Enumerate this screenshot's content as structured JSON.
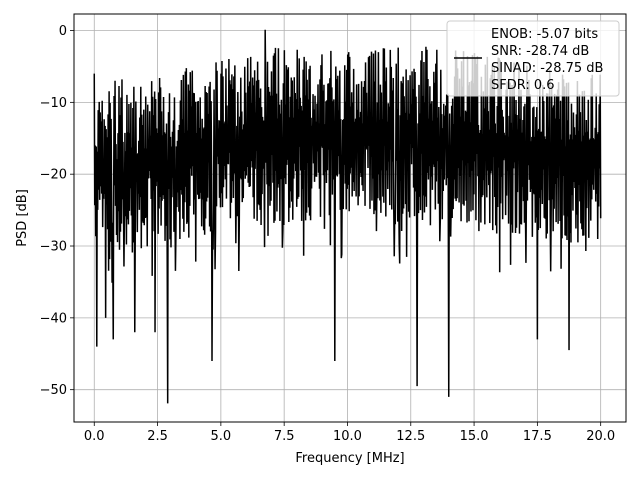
{
  "chart_data": {
    "type": "line",
    "xlabel": "Frequency [MHz]",
    "ylabel": "PSD [dB]",
    "xlim": [
      -0.8,
      21.0
    ],
    "ylim": [
      -54.5,
      2.3
    ],
    "xticks": [
      0.0,
      2.5,
      5.0,
      7.5,
      10.0,
      12.5,
      15.0,
      17.5,
      20.0
    ],
    "xtick_labels": [
      "0.0",
      "2.5",
      "5.0",
      "7.5",
      "10.0",
      "12.5",
      "15.0",
      "17.5",
      "20.0"
    ],
    "yticks": [
      0,
      -10,
      -20,
      -30,
      -40,
      -50
    ],
    "ytick_labels": [
      "0",
      "−10",
      "−20",
      "−30",
      "−40",
      "−50"
    ],
    "grid": true,
    "legend_position": "upper-right",
    "legend_lines": [
      "ENOB: -5.07 bits",
      "SNR: -28.74 dB",
      "SINAD: -28.75 dB",
      "SFDR: 0.6"
    ],
    "series": [
      {
        "color": "#000000",
        "x_start": 0.0,
        "x_end": 20.0,
        "num_points": 1024,
        "envelope": {
          "x": [
            0.0,
            0.5,
            2.5,
            5.0,
            7.5,
            10.0,
            12.5,
            15.0,
            17.5,
            20.0
          ],
          "upper": [
            -10,
            -7,
            -6,
            -4,
            -2,
            -3,
            -2,
            -3,
            -5,
            -6
          ],
          "lower": [
            -30,
            -32,
            -30,
            -28,
            -27,
            -26,
            -27,
            -28,
            -29,
            -30
          ]
        },
        "dips": [
          {
            "x": 0.1,
            "y": -44
          },
          {
            "x": 0.45,
            "y": -40
          },
          {
            "x": 0.75,
            "y": -43
          },
          {
            "x": 1.6,
            "y": -42
          },
          {
            "x": 2.4,
            "y": -42
          },
          {
            "x": 2.9,
            "y": -51.9
          },
          {
            "x": 4.65,
            "y": -46
          },
          {
            "x": 9.5,
            "y": -46
          },
          {
            "x": 12.75,
            "y": -49.5
          },
          {
            "x": 14.0,
            "y": -51
          },
          {
            "x": 17.5,
            "y": -43
          },
          {
            "x": 18.75,
            "y": -44.5
          }
        ],
        "peaks": [
          {
            "x": 6.75,
            "y": 0.1
          },
          {
            "x": 0.0,
            "y": -6
          }
        ]
      }
    ]
  }
}
